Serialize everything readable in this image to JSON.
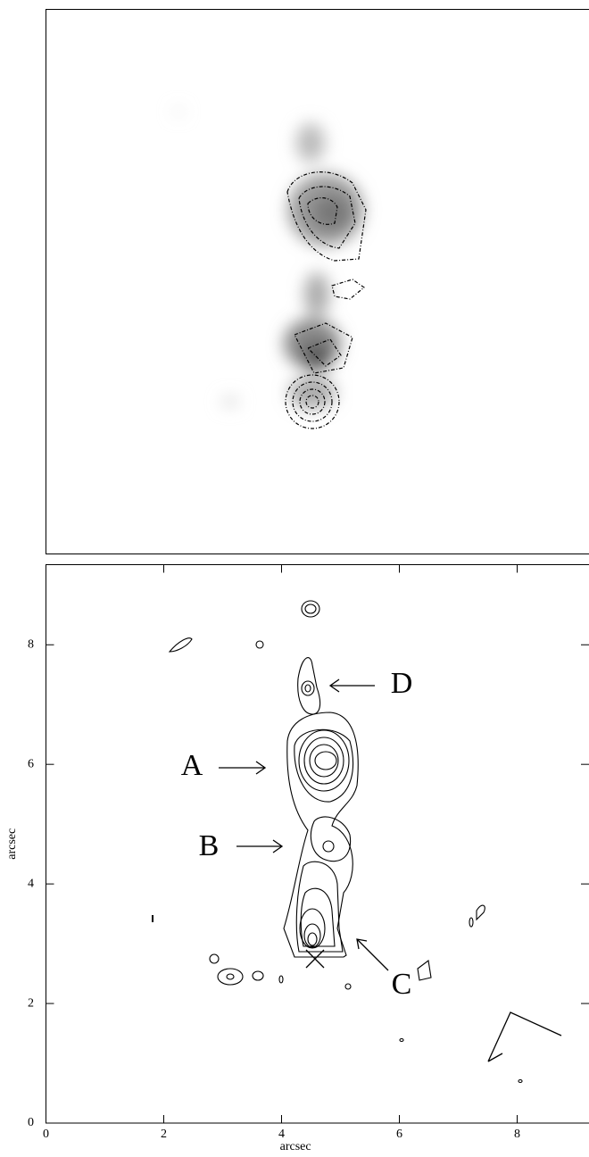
{
  "chart_data": {
    "type": "contour",
    "xlabel": "arcsec",
    "ylabel": "arcsec",
    "xlim": [
      0,
      9.23
    ],
    "ylim": [
      0,
      9.34
    ],
    "xticks": [
      0,
      2,
      4,
      6,
      8
    ],
    "yticks": [
      0,
      2,
      4,
      6,
      8
    ],
    "annotations": [
      "A",
      "B",
      "C",
      "D"
    ]
  }
}
